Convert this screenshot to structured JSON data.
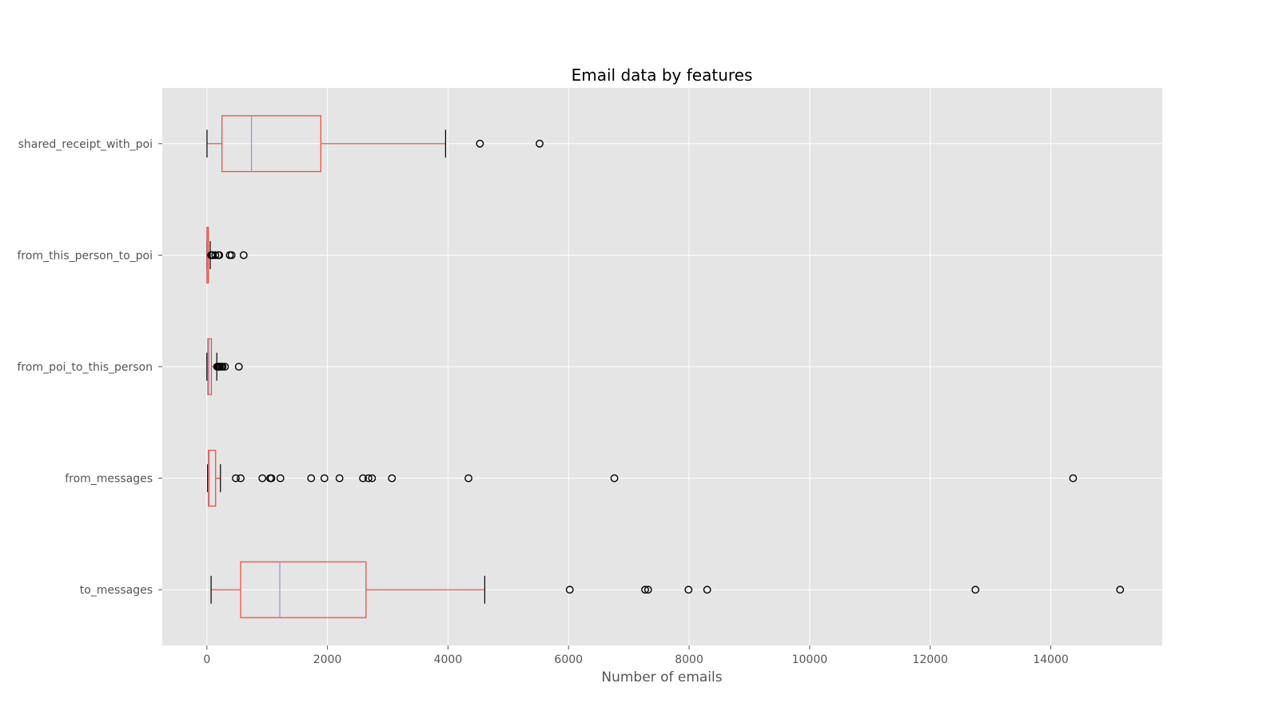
{
  "chart_data": {
    "type": "boxplot",
    "orientation": "horizontal",
    "title": "Email data by features",
    "xlabel": "Number of emails",
    "ylabel": "",
    "xlim": [
      -740,
      15850
    ],
    "xticks": [
      0,
      2000,
      4000,
      6000,
      8000,
      10000,
      12000,
      14000
    ],
    "grid": true,
    "style": "ggplot",
    "colors": {
      "plot_background": "#e5e5e5",
      "grid": "#ffffff",
      "box": "#e24a33",
      "median": "#988ed5",
      "whisker": "#000000",
      "flier": "#000000"
    },
    "categories": [
      "shared_receipt_with_poi",
      "from_this_person_to_poi",
      "from_poi_to_this_person",
      "from_messages",
      "to_messages"
    ],
    "boxes": [
      {
        "name": "shared_receipt_with_poi",
        "whisker_low": 2,
        "q1": 250,
        "median": 740,
        "q3": 1890,
        "whisker_high": 3960,
        "fliers": [
          4530,
          5520
        ]
      },
      {
        "name": "from_this_person_to_poi",
        "whisker_low": 0,
        "q1": 0,
        "median": 8,
        "q3": 25,
        "whisker_high": 55,
        "fliers": [
          70,
          85,
          100,
          140,
          190,
          205,
          380,
          410,
          610
        ]
      },
      {
        "name": "from_poi_to_this_person",
        "whisker_low": 0,
        "q1": 15,
        "median": 35,
        "q3": 75,
        "whisker_high": 165,
        "fliers": [
          170,
          190,
          200,
          215,
          240,
          260,
          300,
          530
        ]
      },
      {
        "name": "from_messages",
        "whisker_low": 12,
        "q1": 25,
        "median": 40,
        "q3": 145,
        "whisker_high": 225,
        "fliers": [
          480,
          560,
          920,
          1050,
          1070,
          1220,
          1730,
          1950,
          2200,
          2590,
          2680,
          2740,
          3070,
          4340,
          6760,
          14370
        ]
      },
      {
        "name": "to_messages",
        "whisker_low": 70,
        "q1": 560,
        "median": 1210,
        "q3": 2640,
        "whisker_high": 4610,
        "fliers": [
          6020,
          7270,
          7320,
          7990,
          8300,
          12750,
          15150
        ]
      }
    ]
  }
}
